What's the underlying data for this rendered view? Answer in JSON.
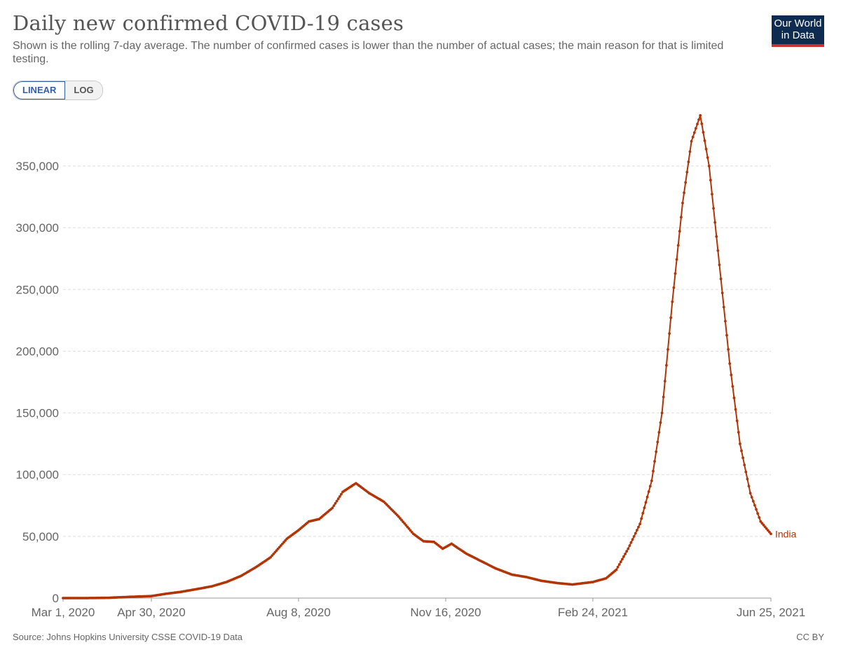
{
  "header": {
    "title": "Daily new confirmed COVID-19 cases",
    "subtitle": "Shown is the rolling 7-day average. The number of confirmed cases is lower than the number of actual cases; the main reason for that is limited testing."
  },
  "logo": {
    "line1": "Our World",
    "line2": "in Data",
    "bg_color": "#0e2c52",
    "accent_color": "#c7312f"
  },
  "scale_toggle": {
    "linear_label": "LINEAR",
    "log_label": "LOG",
    "selected": "LINEAR"
  },
  "footer": {
    "source": "Source: Johns Hopkins University CSSE COVID-19 Data",
    "license": "CC BY"
  },
  "chart_data": {
    "type": "line",
    "title": "Daily new confirmed COVID-19 cases",
    "xlabel": "",
    "ylabel": "",
    "grid": true,
    "y_scale": "linear",
    "ylim": [
      0,
      392000
    ],
    "xlim": [
      "2020-03-01",
      "2021-06-25"
    ],
    "y_ticks": [
      0,
      50000,
      100000,
      150000,
      200000,
      250000,
      300000,
      350000
    ],
    "y_tick_labels": [
      "0",
      "50,000",
      "100,000",
      "150,000",
      "200,000",
      "250,000",
      "300,000",
      "350,000"
    ],
    "x_ticks": [
      "2020-03-01",
      "2020-04-30",
      "2020-08-08",
      "2020-11-16",
      "2021-02-24",
      "2021-06-25"
    ],
    "x_tick_labels": [
      "Mar 1, 2020",
      "Apr 30, 2020",
      "Aug 8, 2020",
      "Nov 16, 2020",
      "Feb 24, 2021",
      "Jun 25, 2021"
    ],
    "series": [
      {
        "name": "India",
        "color": "#b13507",
        "points": [
          [
            "2020-03-01",
            0
          ],
          [
            "2020-03-20",
            30
          ],
          [
            "2020-04-01",
            250
          ],
          [
            "2020-04-20",
            1200
          ],
          [
            "2020-04-30",
            1600
          ],
          [
            "2020-05-10",
            3500
          ],
          [
            "2020-05-20",
            5000
          ],
          [
            "2020-05-31",
            7300
          ],
          [
            "2020-06-10",
            9500
          ],
          [
            "2020-06-20",
            13000
          ],
          [
            "2020-06-30",
            18000
          ],
          [
            "2020-07-10",
            25000
          ],
          [
            "2020-07-20",
            33000
          ],
          [
            "2020-07-31",
            48000
          ],
          [
            "2020-08-08",
            55000
          ],
          [
            "2020-08-15",
            62000
          ],
          [
            "2020-08-22",
            64000
          ],
          [
            "2020-08-31",
            73000
          ],
          [
            "2020-09-07",
            86000
          ],
          [
            "2020-09-16",
            93000
          ],
          [
            "2020-09-25",
            85000
          ],
          [
            "2020-10-05",
            78000
          ],
          [
            "2020-10-15",
            66000
          ],
          [
            "2020-10-25",
            52000
          ],
          [
            "2020-11-01",
            46000
          ],
          [
            "2020-11-08",
            45500
          ],
          [
            "2020-11-14",
            40000
          ],
          [
            "2020-11-20",
            44000
          ],
          [
            "2020-11-30",
            36000
          ],
          [
            "2020-12-10",
            30000
          ],
          [
            "2020-12-20",
            24000
          ],
          [
            "2020-12-31",
            19000
          ],
          [
            "2021-01-10",
            17000
          ],
          [
            "2021-01-20",
            14000
          ],
          [
            "2021-02-01",
            12000
          ],
          [
            "2021-02-10",
            11000
          ],
          [
            "2021-02-24",
            13000
          ],
          [
            "2021-03-05",
            16000
          ],
          [
            "2021-03-12",
            23000
          ],
          [
            "2021-03-20",
            40000
          ],
          [
            "2021-03-28",
            60000
          ],
          [
            "2021-04-05",
            95000
          ],
          [
            "2021-04-12",
            150000
          ],
          [
            "2021-04-19",
            240000
          ],
          [
            "2021-04-26",
            320000
          ],
          [
            "2021-05-02",
            370000
          ],
          [
            "2021-05-08",
            391000
          ],
          [
            "2021-05-14",
            350000
          ],
          [
            "2021-05-21",
            270000
          ],
          [
            "2021-05-28",
            190000
          ],
          [
            "2021-06-04",
            125000
          ],
          [
            "2021-06-11",
            85000
          ],
          [
            "2021-06-18",
            62000
          ],
          [
            "2021-06-25",
            52000
          ]
        ]
      }
    ]
  }
}
